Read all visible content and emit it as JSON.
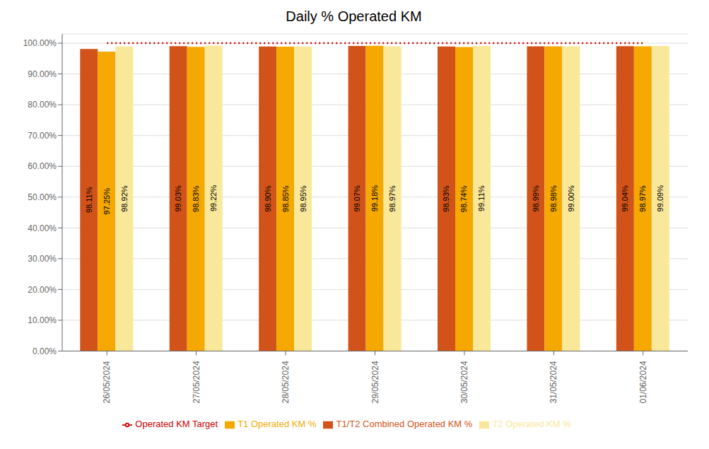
{
  "chart_data": {
    "type": "bar",
    "title": "Daily % Operated KM",
    "categories": [
      "26/05/2024",
      "27/05/2024",
      "28/05/2024",
      "29/05/2024",
      "30/05/2024",
      "31/05/2024",
      "01/06/2024"
    ],
    "series": [
      {
        "name": "T1/T2 Combined Operated KM %",
        "color": "#D2531A",
        "values": [
          98.11,
          99.03,
          98.9,
          99.07,
          98.93,
          98.99,
          99.04
        ],
        "value_labels": [
          "98.11%",
          "99.03%",
          "98.90%",
          "99.07%",
          "98.93%",
          "98.99%",
          "99.04%"
        ]
      },
      {
        "name": "T1 Operated KM %",
        "color": "#F5A800",
        "values": [
          97.25,
          98.83,
          98.85,
          99.18,
          98.74,
          98.98,
          98.97
        ],
        "value_labels": [
          "97.25%",
          "98.83%",
          "98.85%",
          "99.18%",
          "98.74%",
          "98.98%",
          "98.97%"
        ]
      },
      {
        "name": "T2 Operated KM %",
        "color": "#FAE89A",
        "values": [
          98.92,
          99.22,
          98.95,
          98.97,
          99.11,
          99.0,
          99.09
        ],
        "value_labels": [
          "98.92%",
          "99.22%",
          "98.95%",
          "98.97%",
          "99.11%",
          "99.00%",
          "99.09%"
        ]
      },
      {
        "name": "Operated KM Target",
        "type": "line",
        "color": "#CC0000",
        "line_style": "dotted",
        "values": [
          100.0,
          100.0,
          100.0,
          100.0,
          100.0,
          100.0,
          100.0
        ]
      }
    ],
    "ylim": [
      0,
      103
    ],
    "yticks": [
      {
        "value": 0,
        "label": "0.00%"
      },
      {
        "value": 10,
        "label": "10.00%"
      },
      {
        "value": 20,
        "label": "20.00%"
      },
      {
        "value": 30,
        "label": "30.00%"
      },
      {
        "value": 40,
        "label": "40.00%"
      },
      {
        "value": 50,
        "label": "50.00%"
      },
      {
        "value": 60,
        "label": "60.00%"
      },
      {
        "value": 70,
        "label": "70.00%"
      },
      {
        "value": 80,
        "label": "80.00%"
      },
      {
        "value": 90,
        "label": "90.00%"
      },
      {
        "value": 100,
        "label": "100.00%"
      }
    ],
    "grid": true,
    "data_labels": true,
    "legend": "bottom"
  }
}
